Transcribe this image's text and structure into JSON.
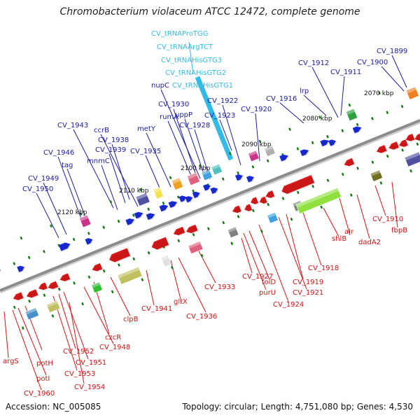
{
  "title": "Chromobacterium violaceum ATCC 12472, complete genome",
  "accession": "Accession: NC_005085",
  "summary": "Topology: circular; Length: 4,751,080 bp; Genes: 4,530",
  "colors": {
    "backbone": "#8c8c8c",
    "forward_label": "#1a1aa8",
    "reverse_label": "#d21414",
    "trna_label": "#33bbe8",
    "forward_feature": "#1a2ee6",
    "reverse_feature": "#e61a1a",
    "tick": "#1a7a1a"
  },
  "scale_labels": [
    "2070 kbp",
    "2080 kbp",
    "2090 kbp",
    "2100 kbp",
    "2110 kbp",
    "2120 kbp"
  ],
  "trna_labels": [
    "CV_tRNAProTGG",
    "CV_tRNAArgTCT",
    "CV_tRNAHisGTG3",
    "CV_tRNAHisGTG2",
    "CV_tRNAHisGTG1"
  ],
  "forward_labels": [
    "CV_1899",
    "CV_1900",
    "CV_1911",
    "CV_1912",
    "lrp",
    "CV_1916",
    "CV_1920",
    "CV_1922",
    "CV_1923",
    "nupC",
    "CV_1930",
    "uppP",
    "CV_1928",
    "rumA",
    "metY",
    "CV_1935",
    "ccrB",
    "CV_1938",
    "CV_1939",
    "CV_1943",
    "mnmC",
    "CV_1946",
    "tag",
    "CV_1949",
    "CV_1950"
  ],
  "reverse_labels": [
    "CV_1910",
    "fbpB",
    "dadA2",
    "alr",
    "shlB",
    "CV_1918",
    "CV_1919",
    "CV_1921",
    "CV_1924",
    "folD",
    "purU",
    "CV_1927",
    "CV_1933",
    "CV_1936",
    "gltX",
    "CV_1941",
    "clpB",
    "czcR",
    "CV_1948",
    "CV_1951",
    "CV_1952",
    "CV_1953",
    "CV_1954",
    "potH",
    "potI",
    "argS",
    "CV_1960"
  ]
}
